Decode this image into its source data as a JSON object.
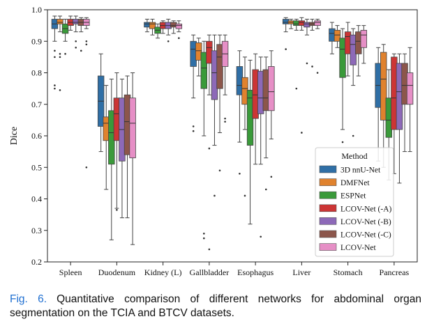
{
  "caption": {
    "label": "Fig. 6.",
    "text": "Quantitative comparison of different networks for abdominal organ segmentation on the TCIA and BTCV datasets."
  },
  "chart_data": {
    "type": "box",
    "ylabel": "Dice",
    "ylim": [
      0.2,
      1.0
    ],
    "yticks": [
      "0.2",
      "0.3",
      "0.4",
      "0.5",
      "0.6",
      "0.7",
      "0.8",
      "0.9",
      "1.0"
    ],
    "categories": [
      "Spleen",
      "Duodenum",
      "Kidney (L)",
      "Gallbladder",
      "Esophagus",
      "Liver",
      "Stomach",
      "Pancreas"
    ],
    "legend": {
      "title": "Method",
      "position": "lower-right"
    },
    "series": [
      {
        "name": "3D nnU-Net",
        "color": "#2f6fa6",
        "boxes": [
          {
            "whisker_low": 0.9,
            "q1": 0.94,
            "median": 0.955,
            "q3": 0.97,
            "whisker_high": 0.98,
            "outliers": [
              0.87,
              0.85,
              0.76,
              0.75
            ]
          },
          {
            "whisker_low": 0.55,
            "q1": 0.63,
            "median": 0.71,
            "q3": 0.79,
            "whisker_high": 0.86,
            "outliers": []
          },
          {
            "whisker_low": 0.93,
            "q1": 0.945,
            "median": 0.955,
            "q3": 0.96,
            "whisker_high": 0.97,
            "outliers": []
          },
          {
            "whisker_low": 0.72,
            "q1": 0.82,
            "median": 0.875,
            "q3": 0.9,
            "whisker_high": 0.92,
            "outliers": [
              0.63,
              0.615
            ]
          },
          {
            "whisker_low": 0.58,
            "q1": 0.73,
            "median": 0.76,
            "q3": 0.82,
            "whisker_high": 0.87,
            "outliers": [
              0.48
            ]
          },
          {
            "whisker_low": 0.93,
            "q1": 0.955,
            "median": 0.96,
            "q3": 0.97,
            "whisker_high": 0.975,
            "outliers": [
              0.875
            ]
          },
          {
            "whisker_low": 0.86,
            "q1": 0.9,
            "median": 0.925,
            "q3": 0.94,
            "whisker_high": 0.96,
            "outliers": []
          },
          {
            "whisker_low": 0.52,
            "q1": 0.69,
            "median": 0.76,
            "q3": 0.83,
            "whisker_high": 0.88,
            "outliers": []
          }
        ]
      },
      {
        "name": "DMFNet",
        "color": "#e0822e",
        "boxes": [
          {
            "whisker_low": 0.93,
            "q1": 0.955,
            "median": 0.96,
            "q3": 0.97,
            "whisker_high": 0.98,
            "outliers": [
              0.86,
              0.85,
              0.745
            ]
          },
          {
            "whisker_low": 0.43,
            "q1": 0.585,
            "median": 0.64,
            "q3": 0.66,
            "whisker_high": 0.76,
            "outliers": []
          },
          {
            "whisker_low": 0.92,
            "q1": 0.94,
            "median": 0.955,
            "q3": 0.96,
            "whisker_high": 0.97,
            "outliers": []
          },
          {
            "whisker_low": 0.79,
            "q1": 0.84,
            "median": 0.87,
            "q3": 0.895,
            "whisker_high": 0.91,
            "outliers": []
          },
          {
            "whisker_low": 0.62,
            "q1": 0.7,
            "median": 0.75,
            "q3": 0.785,
            "whisker_high": 0.85,
            "outliers": [
              0.41
            ]
          },
          {
            "whisker_low": 0.94,
            "q1": 0.955,
            "median": 0.96,
            "q3": 0.965,
            "whisker_high": 0.97,
            "outliers": []
          },
          {
            "whisker_low": 0.88,
            "q1": 0.9,
            "median": 0.92,
            "q3": 0.935,
            "whisker_high": 0.95,
            "outliers": []
          },
          {
            "whisker_low": 0.5,
            "q1": 0.65,
            "median": 0.78,
            "q3": 0.865,
            "whisker_high": 0.89,
            "outliers": []
          }
        ]
      },
      {
        "name": "ESPNet",
        "color": "#3a9a3a",
        "boxes": [
          {
            "whisker_low": 0.9,
            "q1": 0.925,
            "median": 0.94,
            "q3": 0.955,
            "whisker_high": 0.97,
            "outliers": [
              0.86
            ]
          },
          {
            "whisker_low": 0.27,
            "q1": 0.51,
            "median": 0.61,
            "q3": 0.68,
            "whisker_high": 0.78,
            "outliers": []
          },
          {
            "whisker_low": 0.91,
            "q1": 0.925,
            "median": 0.935,
            "q3": 0.945,
            "whisker_high": 0.955,
            "outliers": []
          },
          {
            "whisker_low": 0.6,
            "q1": 0.75,
            "median": 0.815,
            "q3": 0.865,
            "whisker_high": 0.9,
            "outliers": [
              0.29,
              0.275
            ]
          },
          {
            "whisker_low": 0.32,
            "q1": 0.57,
            "median": 0.72,
            "q3": 0.745,
            "whisker_high": 0.84,
            "outliers": []
          },
          {
            "whisker_low": 0.935,
            "q1": 0.95,
            "median": 0.955,
            "q3": 0.965,
            "whisker_high": 0.97,
            "outliers": [
              0.75
            ]
          },
          {
            "whisker_low": 0.62,
            "q1": 0.785,
            "median": 0.875,
            "q3": 0.91,
            "whisker_high": 0.94,
            "outliers": [
              0.58
            ]
          },
          {
            "whisker_low": 0.46,
            "q1": 0.595,
            "median": 0.65,
            "q3": 0.72,
            "whisker_high": 0.81,
            "outliers": []
          }
        ]
      },
      {
        "name": "LCOV-Net (-A)",
        "color": "#cc3535",
        "boxes": [
          {
            "whisker_low": 0.935,
            "q1": 0.95,
            "median": 0.96,
            "q3": 0.97,
            "whisker_high": 0.98,
            "outliers": []
          },
          {
            "whisker_low": 0.37,
            "q1": 0.585,
            "median": 0.67,
            "q3": 0.72,
            "whisker_high": 0.8,
            "outliers": [
              0.365
            ]
          },
          {
            "whisker_low": 0.925,
            "q1": 0.94,
            "median": 0.95,
            "q3": 0.96,
            "whisker_high": 0.965,
            "outliers": []
          },
          {
            "whisker_low": 0.73,
            "q1": 0.83,
            "median": 0.88,
            "q3": 0.9,
            "whisker_high": 0.92,
            "outliers": [
              0.56,
              0.24
            ]
          },
          {
            "whisker_low": 0.51,
            "q1": 0.655,
            "median": 0.73,
            "q3": 0.81,
            "whisker_high": 0.86,
            "outliers": []
          },
          {
            "whisker_low": 0.935,
            "q1": 0.95,
            "median": 0.96,
            "q3": 0.965,
            "whisker_high": 0.975,
            "outliers": [
              0.61
            ]
          },
          {
            "whisker_low": 0.79,
            "q1": 0.86,
            "median": 0.915,
            "q3": 0.93,
            "whisker_high": 0.96,
            "outliers": [
              0.53
            ]
          },
          {
            "whisker_low": 0.48,
            "q1": 0.62,
            "median": 0.72,
            "q3": 0.85,
            "whisker_high": 0.86,
            "outliers": []
          }
        ]
      },
      {
        "name": "LCOV-Net (-B)",
        "color": "#8d69b8",
        "boxes": [
          {
            "whisker_low": 0.93,
            "q1": 0.955,
            "median": 0.96,
            "q3": 0.97,
            "whisker_high": 0.98,
            "outliers": [
              0.9,
              0.88
            ]
          },
          {
            "whisker_low": 0.34,
            "q1": 0.52,
            "median": 0.62,
            "q3": 0.72,
            "whisker_high": 0.78,
            "outliers": []
          },
          {
            "whisker_low": 0.92,
            "q1": 0.94,
            "median": 0.95,
            "q3": 0.96,
            "whisker_high": 0.97,
            "outliers": [
              0.9
            ]
          },
          {
            "whisker_low": 0.57,
            "q1": 0.715,
            "median": 0.8,
            "q3": 0.87,
            "whisker_high": 0.92,
            "outliers": [
              0.41
            ]
          },
          {
            "whisker_low": 0.51,
            "q1": 0.67,
            "median": 0.72,
            "q3": 0.805,
            "whisker_high": 0.85,
            "outliers": [
              0.28
            ]
          },
          {
            "whisker_low": 0.92,
            "q1": 0.945,
            "median": 0.955,
            "q3": 0.96,
            "whisker_high": 0.97,
            "outliers": [
              0.83
            ]
          },
          {
            "whisker_low": 0.76,
            "q1": 0.825,
            "median": 0.89,
            "q3": 0.92,
            "whisker_high": 0.94,
            "outliers": [
              0.6
            ]
          },
          {
            "whisker_low": 0.45,
            "q1": 0.62,
            "median": 0.74,
            "q3": 0.83,
            "whisker_high": 0.86,
            "outliers": []
          }
        ]
      },
      {
        "name": "LCOV-Net (-C)",
        "color": "#8c564b",
        "boxes": [
          {
            "whisker_low": 0.93,
            "q1": 0.95,
            "median": 0.96,
            "q3": 0.97,
            "whisker_high": 0.975,
            "outliers": [
              0.87
            ]
          },
          {
            "whisker_low": 0.34,
            "q1": 0.54,
            "median": 0.645,
            "q3": 0.73,
            "whisker_high": 0.79,
            "outliers": []
          },
          {
            "whisker_low": 0.925,
            "q1": 0.945,
            "median": 0.95,
            "q3": 0.96,
            "whisker_high": 0.965,
            "outliers": []
          },
          {
            "whisker_low": 0.61,
            "q1": 0.75,
            "median": 0.85,
            "q3": 0.89,
            "whisker_high": 0.92,
            "outliers": [
              0.49
            ]
          },
          {
            "whisker_low": 0.53,
            "q1": 0.68,
            "median": 0.72,
            "q3": 0.81,
            "whisker_high": 0.85,
            "outliers": [
              0.43
            ]
          },
          {
            "whisker_low": 0.935,
            "q1": 0.95,
            "median": 0.955,
            "q3": 0.96,
            "whisker_high": 0.97,
            "outliers": [
              0.82
            ]
          },
          {
            "whisker_low": 0.79,
            "q1": 0.86,
            "median": 0.9,
            "q3": 0.93,
            "whisker_high": 0.95,
            "outliers": []
          },
          {
            "whisker_low": 0.55,
            "q1": 0.7,
            "median": 0.76,
            "q3": 0.83,
            "whisker_high": 0.86,
            "outliers": []
          }
        ]
      },
      {
        "name": "LCOV-Net",
        "color": "#e68fc6",
        "boxes": [
          {
            "whisker_low": 0.94,
            "q1": 0.95,
            "median": 0.96,
            "q3": 0.97,
            "whisker_high": 0.975,
            "outliers": [
              0.9,
              0.89,
              0.5
            ]
          },
          {
            "whisker_low": 0.255,
            "q1": 0.53,
            "median": 0.64,
            "q3": 0.72,
            "whisker_high": 0.8,
            "outliers": []
          },
          {
            "whisker_low": 0.93,
            "q1": 0.94,
            "median": 0.95,
            "q3": 0.955,
            "whisker_high": 0.965,
            "outliers": [
              0.91
            ]
          },
          {
            "whisker_low": 0.73,
            "q1": 0.82,
            "median": 0.86,
            "q3": 0.9,
            "whisker_high": 0.92,
            "outliers": [
              0.655,
              0.645
            ]
          },
          {
            "whisker_low": 0.59,
            "q1": 0.68,
            "median": 0.74,
            "q3": 0.82,
            "whisker_high": 0.87,
            "outliers": [
              0.47
            ]
          },
          {
            "whisker_low": 0.94,
            "q1": 0.95,
            "median": 0.96,
            "q3": 0.965,
            "whisker_high": 0.97,
            "outliers": [
              0.8
            ]
          },
          {
            "whisker_low": 0.83,
            "q1": 0.88,
            "median": 0.92,
            "q3": 0.935,
            "whisker_high": 0.95,
            "outliers": []
          },
          {
            "whisker_low": 0.55,
            "q1": 0.7,
            "median": 0.76,
            "q3": 0.8,
            "whisker_high": 0.88,
            "outliers": []
          }
        ]
      }
    ]
  }
}
